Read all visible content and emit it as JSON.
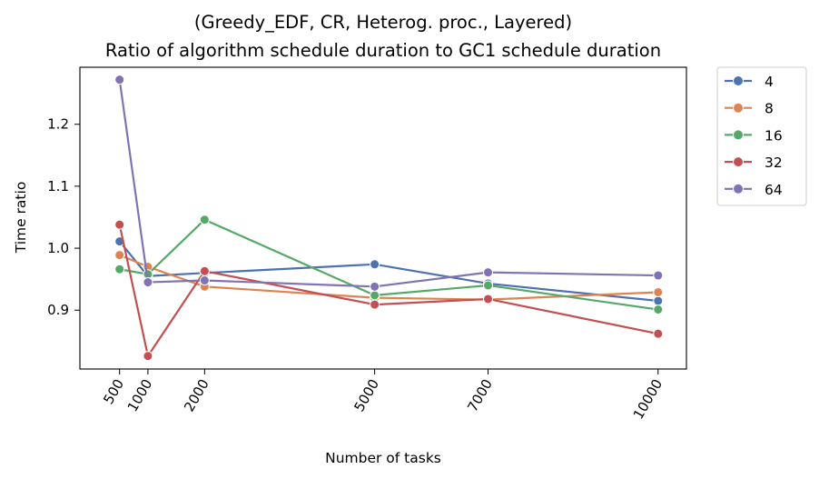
{
  "chart_data": {
    "type": "line",
    "title_line1": "(Greedy_EDF, CR, Heterog. proc., Layered)",
    "title_line2": "Ratio of algorithm schedule duration to GC1 schedule duration",
    "xlabel": "Number of tasks",
    "ylabel": "Time ratio",
    "x": [
      500,
      1000,
      2000,
      5000,
      7000,
      10000
    ],
    "x_tick_labels": [
      "500",
      "1000",
      "2000",
      "5000",
      "7000",
      "10000"
    ],
    "xlim": [
      -200,
      10500
    ],
    "ylim": [
      0.805,
      1.292
    ],
    "y_ticks": [
      0.9,
      1.0,
      1.1,
      1.2
    ],
    "y_tick_labels": [
      "0.9",
      "1.0",
      "1.1",
      "1.2"
    ],
    "grid": false,
    "legend_position": "outside-right",
    "series": [
      {
        "name": "4",
        "color": "#4c72b0",
        "values": [
          1.011,
          0.955,
          0.96,
          0.974,
          0.943,
          0.915
        ]
      },
      {
        "name": "8",
        "color": "#dd8452",
        "values": [
          0.989,
          0.97,
          0.938,
          0.92,
          0.917,
          0.929
        ]
      },
      {
        "name": "16",
        "color": "#55a868",
        "values": [
          0.966,
          0.958,
          1.046,
          0.924,
          0.94,
          0.901
        ]
      },
      {
        "name": "32",
        "color": "#c44e52",
        "values": [
          1.038,
          0.826,
          0.963,
          0.909,
          0.918,
          0.862
        ]
      },
      {
        "name": "64",
        "color": "#8172b3",
        "values": [
          1.272,
          0.945,
          0.948,
          0.938,
          0.961,
          0.956
        ]
      }
    ]
  }
}
